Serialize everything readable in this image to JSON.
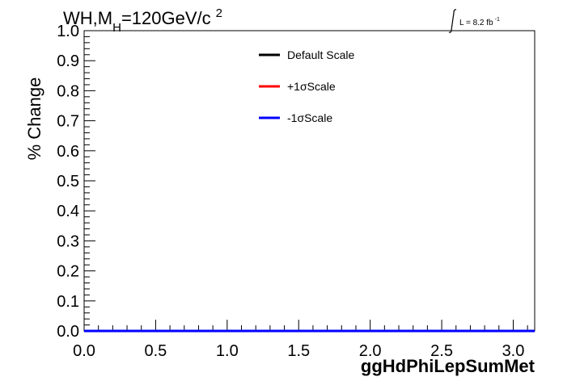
{
  "chart_data": {
    "type": "line",
    "title_main": "WH,M",
    "title_sub": "H",
    "title_rest": "=120GeV/c",
    "title_sup": "2",
    "lumi_label": "L = 8.2 fb",
    "lumi_sup": "-1",
    "xlabel": "ggHdPhiLepSumMet",
    "ylabel": "% Change",
    "xlim": [
      0.0,
      3.15
    ],
    "ylim": [
      0.0,
      1.0
    ],
    "xticks": [
      "0.0",
      "0.5",
      "1.0",
      "1.5",
      "2.0",
      "2.5",
      "3.0"
    ],
    "yticks": [
      "0.0",
      "0.1",
      "0.2",
      "0.3",
      "0.4",
      "0.5",
      "0.6",
      "0.7",
      "0.8",
      "0.9",
      "1.0"
    ],
    "legend_position": "top-right",
    "series": [
      {
        "name": "Default Scale",
        "color": "#000000",
        "x": [
          0.0,
          3.15
        ],
        "y": [
          0.0,
          0.0
        ]
      },
      {
        "name": "+1σScale",
        "color": "#ff0000",
        "x": [
          0.0,
          3.15
        ],
        "y": [
          0.0,
          0.0
        ]
      },
      {
        "name": "-1σScale",
        "color": "#0000ff",
        "x": [
          0.0,
          3.15
        ],
        "y": [
          0.0,
          0.0
        ]
      }
    ]
  }
}
